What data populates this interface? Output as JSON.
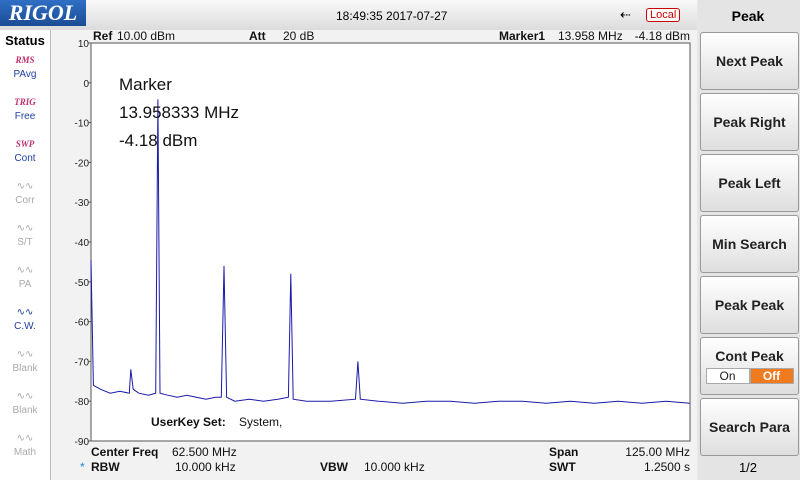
{
  "header": {
    "logo": "RIGOL",
    "datetime": "18:49:35 2017-07-27",
    "mode": "Local"
  },
  "status": {
    "title": "Status",
    "items": [
      {
        "icon": "RMS",
        "label": "PAvg"
      },
      {
        "icon": "TRIG",
        "label": "Free"
      },
      {
        "icon": "SWP",
        "label": "Cont"
      },
      {
        "label": "Corr"
      },
      {
        "label": "S/T"
      },
      {
        "label": "PA"
      },
      {
        "label": "C.W."
      },
      {
        "label": "Blank"
      },
      {
        "label": "Blank"
      },
      {
        "label": "Math"
      }
    ]
  },
  "plot": {
    "ref_label": "Ref",
    "ref_value": "10.00 dBm",
    "att_label": "Att",
    "att_value": "20 dB",
    "marker_label": "Marker1",
    "marker_freq": "13.958 MHz",
    "marker_level": "-4.18 dBm",
    "annotation": {
      "title": "Marker",
      "freq": "13.958333 MHz",
      "level": "-4.18 dBm"
    },
    "userkey_label": "UserKey Set:",
    "userkey_value": "System,",
    "ylim": [
      -90,
      10
    ],
    "yticks": [
      10,
      0,
      -10,
      -20,
      -30,
      -40,
      -50,
      -60,
      -70,
      -80,
      -90
    ],
    "xlim": [
      0,
      125
    ],
    "trace": {
      "color": "#1a1aa8",
      "x": [
        0,
        0.5,
        2,
        4,
        6,
        8,
        8.3,
        8.8,
        10,
        12,
        13.5,
        13.958,
        14.4,
        16,
        18,
        20,
        22,
        24,
        26,
        27.2,
        27.75,
        28.3,
        30,
        33,
        36,
        39,
        41.2,
        41.7,
        42.2,
        45,
        50,
        55.2,
        55.7,
        56.2,
        60,
        65,
        70,
        75,
        80,
        85,
        90,
        95,
        100,
        105,
        110,
        115,
        120,
        125
      ],
      "values": [
        -44.5,
        -76,
        -77,
        -78,
        -77.5,
        -78,
        -72,
        -77,
        -78,
        -78.5,
        -78,
        -4.18,
        -78,
        -78.5,
        -79,
        -78.5,
        -79,
        -79.5,
        -79,
        -79,
        -46,
        -79,
        -80,
        -79.5,
        -80,
        -79.5,
        -79,
        -48,
        -79.5,
        -80,
        -80,
        -79.5,
        -70,
        -79.5,
        -80,
        -80.5,
        -80,
        -80,
        -80.5,
        -80,
        -80,
        -80.5,
        -80,
        -80.5,
        -80,
        -80.5,
        -80,
        -80.5
      ]
    }
  },
  "footer": {
    "center_label": "Center Freq",
    "center_value": "62.500 MHz",
    "span_label": "Span",
    "span_value": "125.00 MHz",
    "rbw_flag": "*",
    "rbw_label": "RBW",
    "rbw_value": "10.000 kHz",
    "vbw_label": "VBW",
    "vbw_value": "10.000 kHz",
    "swt_label": "SWT",
    "swt_value": "1.2500 s"
  },
  "softkeys": {
    "title": "Peak",
    "keys": [
      "Next Peak",
      "Peak Right",
      "Peak Left",
      "Min Search",
      "Peak Peak"
    ],
    "cont_peak": {
      "label": "Cont Peak",
      "on": "On",
      "off": "Off"
    },
    "search_para": "Search Para",
    "page": "1/2"
  }
}
